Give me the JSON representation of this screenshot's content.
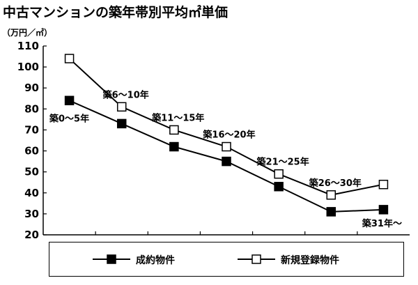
{
  "title": "中古マンションの築年帯別平均㎡単価",
  "unit_label": "（万円／㎡）",
  "chart_data": {
    "type": "line",
    "title": "中古マンションの築年帯別平均㎡単価",
    "ylabel": "（万円／㎡）",
    "ylim": [
      20,
      110
    ],
    "yticks": [
      110,
      100,
      90,
      80,
      70,
      60,
      50,
      40,
      30,
      20
    ],
    "categories": [
      "築0～5年",
      "築6～10年",
      "築11～15年",
      "築16～20年",
      "築21～25年",
      "築26～30年",
      "築31年～"
    ],
    "series": [
      {
        "name": "成約物件",
        "marker": "filled-square",
        "values": [
          84,
          73,
          62,
          55,
          43,
          31,
          32
        ]
      },
      {
        "name": "新規登録物件",
        "marker": "open-square",
        "values": [
          104,
          81,
          70,
          62,
          49,
          39,
          44
        ]
      }
    ],
    "legend_position": "bottom",
    "grid": false
  }
}
